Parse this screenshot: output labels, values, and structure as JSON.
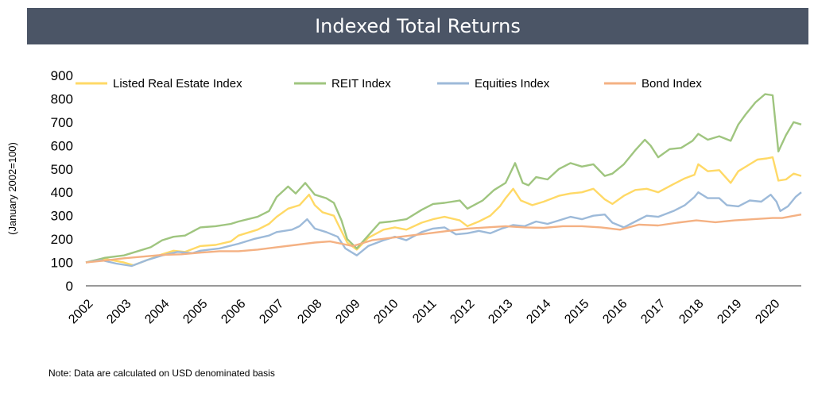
{
  "chart_data": {
    "type": "line",
    "title": "Indexed Total Returns",
    "xlabel": "",
    "ylabel": "(January 2002=100)",
    "xlim": [
      2002,
      2020.75
    ],
    "ylim": [
      0,
      900
    ],
    "yticks": [
      0,
      100,
      200,
      300,
      400,
      500,
      600,
      700,
      800,
      900
    ],
    "xticks": [
      "2002",
      "2003",
      "2004",
      "2005",
      "2006",
      "2007",
      "2008",
      "2009",
      "2010",
      "2011",
      "2012",
      "2013",
      "2014",
      "2015",
      "2016",
      "2017",
      "2018",
      "2019",
      "2020"
    ],
    "grid": false,
    "legend": "top",
    "series": [
      {
        "name": "Listed Real Estate Index",
        "color": "#ffd966",
        "points": [
          [
            2002,
            100
          ],
          [
            2002.5,
            115
          ],
          [
            2003,
            100
          ],
          [
            2003.25,
            88
          ],
          [
            2003.6,
            110
          ],
          [
            2004,
            135
          ],
          [
            2004.3,
            150
          ],
          [
            2004.6,
            145
          ],
          [
            2005,
            170
          ],
          [
            2005.4,
            175
          ],
          [
            2005.8,
            190
          ],
          [
            2006,
            215
          ],
          [
            2006.5,
            240
          ],
          [
            2006.8,
            265
          ],
          [
            2007,
            295
          ],
          [
            2007.3,
            330
          ],
          [
            2007.6,
            345
          ],
          [
            2007.85,
            390
          ],
          [
            2008,
            345
          ],
          [
            2008.2,
            315
          ],
          [
            2008.5,
            300
          ],
          [
            2008.65,
            250
          ],
          [
            2008.85,
            185
          ],
          [
            2009.1,
            155
          ],
          [
            2009.4,
            205
          ],
          [
            2009.8,
            240
          ],
          [
            2010.1,
            250
          ],
          [
            2010.4,
            240
          ],
          [
            2010.8,
            270
          ],
          [
            2011.1,
            285
          ],
          [
            2011.4,
            295
          ],
          [
            2011.8,
            280
          ],
          [
            2012,
            255
          ],
          [
            2012.3,
            275
          ],
          [
            2012.6,
            300
          ],
          [
            2012.85,
            340
          ],
          [
            2013,
            375
          ],
          [
            2013.2,
            415
          ],
          [
            2013.4,
            365
          ],
          [
            2013.7,
            345
          ],
          [
            2014,
            360
          ],
          [
            2014.4,
            385
          ],
          [
            2014.7,
            395
          ],
          [
            2015,
            400
          ],
          [
            2015.3,
            415
          ],
          [
            2015.6,
            370
          ],
          [
            2015.8,
            350
          ],
          [
            2016.1,
            385
          ],
          [
            2016.4,
            410
          ],
          [
            2016.7,
            415
          ],
          [
            2017,
            400
          ],
          [
            2017.4,
            435
          ],
          [
            2017.7,
            460
          ],
          [
            2017.95,
            475
          ],
          [
            2018.05,
            520
          ],
          [
            2018.3,
            490
          ],
          [
            2018.6,
            495
          ],
          [
            2018.9,
            440
          ],
          [
            2019.1,
            490
          ],
          [
            2019.4,
            520
          ],
          [
            2019.6,
            540
          ],
          [
            2019.85,
            545
          ],
          [
            2020,
            550
          ],
          [
            2020.15,
            450
          ],
          [
            2020.35,
            455
          ],
          [
            2020.55,
            480
          ],
          [
            2020.75,
            470
          ]
        ]
      },
      {
        "name": "REIT Index",
        "color": "#9fc57f",
        "points": [
          [
            2002,
            100
          ],
          [
            2002.5,
            120
          ],
          [
            2003,
            130
          ],
          [
            2003.4,
            150
          ],
          [
            2003.7,
            165
          ],
          [
            2004,
            195
          ],
          [
            2004.3,
            210
          ],
          [
            2004.6,
            215
          ],
          [
            2005,
            250
          ],
          [
            2005.4,
            255
          ],
          [
            2005.8,
            265
          ],
          [
            2006,
            275
          ],
          [
            2006.5,
            295
          ],
          [
            2006.8,
            320
          ],
          [
            2007,
            380
          ],
          [
            2007.3,
            425
          ],
          [
            2007.5,
            395
          ],
          [
            2007.75,
            440
          ],
          [
            2008,
            390
          ],
          [
            2008.3,
            375
          ],
          [
            2008.5,
            355
          ],
          [
            2008.7,
            280
          ],
          [
            2008.85,
            200
          ],
          [
            2009.1,
            160
          ],
          [
            2009.4,
            215
          ],
          [
            2009.7,
            270
          ],
          [
            2010,
            275
          ],
          [
            2010.4,
            285
          ],
          [
            2010.8,
            325
          ],
          [
            2011.1,
            350
          ],
          [
            2011.4,
            355
          ],
          [
            2011.8,
            365
          ],
          [
            2012,
            330
          ],
          [
            2012.4,
            365
          ],
          [
            2012.7,
            410
          ],
          [
            2013,
            440
          ],
          [
            2013.25,
            525
          ],
          [
            2013.45,
            440
          ],
          [
            2013.6,
            430
          ],
          [
            2013.8,
            465
          ],
          [
            2014.1,
            455
          ],
          [
            2014.4,
            500
          ],
          [
            2014.7,
            525
          ],
          [
            2015,
            510
          ],
          [
            2015.3,
            520
          ],
          [
            2015.6,
            470
          ],
          [
            2015.8,
            480
          ],
          [
            2016.1,
            520
          ],
          [
            2016.4,
            580
          ],
          [
            2016.65,
            625
          ],
          [
            2016.8,
            600
          ],
          [
            2017,
            550
          ],
          [
            2017.3,
            585
          ],
          [
            2017.6,
            590
          ],
          [
            2017.9,
            620
          ],
          [
            2018.05,
            650
          ],
          [
            2018.3,
            625
          ],
          [
            2018.6,
            640
          ],
          [
            2018.9,
            620
          ],
          [
            2019.1,
            690
          ],
          [
            2019.3,
            735
          ],
          [
            2019.55,
            785
          ],
          [
            2019.8,
            820
          ],
          [
            2020,
            815
          ],
          [
            2020.15,
            575
          ],
          [
            2020.35,
            645
          ],
          [
            2020.55,
            700
          ],
          [
            2020.75,
            690
          ]
        ]
      },
      {
        "name": "Equities Index",
        "color": "#9dbad9",
        "points": [
          [
            2002,
            100
          ],
          [
            2002.4,
            110
          ],
          [
            2002.8,
            95
          ],
          [
            2003.2,
            85
          ],
          [
            2003.6,
            110
          ],
          [
            2004,
            130
          ],
          [
            2004.4,
            145
          ],
          [
            2004.8,
            140
          ],
          [
            2005,
            150
          ],
          [
            2005.5,
            160
          ],
          [
            2006,
            180
          ],
          [
            2006.4,
            200
          ],
          [
            2006.8,
            215
          ],
          [
            2007,
            230
          ],
          [
            2007.4,
            240
          ],
          [
            2007.6,
            255
          ],
          [
            2007.8,
            285
          ],
          [
            2008,
            245
          ],
          [
            2008.3,
            230
          ],
          [
            2008.6,
            210
          ],
          [
            2008.8,
            160
          ],
          [
            2009.1,
            130
          ],
          [
            2009.4,
            170
          ],
          [
            2009.8,
            195
          ],
          [
            2010.1,
            210
          ],
          [
            2010.4,
            195
          ],
          [
            2010.8,
            230
          ],
          [
            2011.1,
            245
          ],
          [
            2011.4,
            250
          ],
          [
            2011.7,
            220
          ],
          [
            2012,
            225
          ],
          [
            2012.3,
            235
          ],
          [
            2012.6,
            225
          ],
          [
            2012.9,
            245
          ],
          [
            2013.2,
            260
          ],
          [
            2013.5,
            255
          ],
          [
            2013.8,
            275
          ],
          [
            2014.1,
            265
          ],
          [
            2014.4,
            280
          ],
          [
            2014.7,
            295
          ],
          [
            2015,
            285
          ],
          [
            2015.3,
            300
          ],
          [
            2015.6,
            305
          ],
          [
            2015.8,
            270
          ],
          [
            2016.1,
            250
          ],
          [
            2016.4,
            275
          ],
          [
            2016.7,
            300
          ],
          [
            2017,
            295
          ],
          [
            2017.4,
            320
          ],
          [
            2017.7,
            345
          ],
          [
            2017.95,
            380
          ],
          [
            2018.05,
            400
          ],
          [
            2018.3,
            375
          ],
          [
            2018.6,
            375
          ],
          [
            2018.8,
            345
          ],
          [
            2019.1,
            340
          ],
          [
            2019.4,
            365
          ],
          [
            2019.7,
            360
          ],
          [
            2019.95,
            390
          ],
          [
            2020.1,
            360
          ],
          [
            2020.2,
            320
          ],
          [
            2020.4,
            340
          ],
          [
            2020.6,
            380
          ],
          [
            2020.75,
            400
          ]
        ]
      },
      {
        "name": "Bond Index",
        "color": "#f4b183",
        "points": [
          [
            2002,
            100
          ],
          [
            2002.5,
            108
          ],
          [
            2003,
            118
          ],
          [
            2003.5,
            125
          ],
          [
            2004,
            132
          ],
          [
            2004.5,
            135
          ],
          [
            2005,
            142
          ],
          [
            2005.5,
            148
          ],
          [
            2006,
            148
          ],
          [
            2006.5,
            155
          ],
          [
            2007,
            165
          ],
          [
            2007.5,
            175
          ],
          [
            2008,
            185
          ],
          [
            2008.4,
            190
          ],
          [
            2008.7,
            180
          ],
          [
            2009,
            170
          ],
          [
            2009.5,
            195
          ],
          [
            2010,
            205
          ],
          [
            2010.5,
            215
          ],
          [
            2011,
            225
          ],
          [
            2011.5,
            235
          ],
          [
            2012,
            245
          ],
          [
            2012.5,
            250
          ],
          [
            2013,
            255
          ],
          [
            2013.5,
            250
          ],
          [
            2014,
            248
          ],
          [
            2014.5,
            255
          ],
          [
            2015,
            255
          ],
          [
            2015.5,
            250
          ],
          [
            2016,
            240
          ],
          [
            2016.5,
            262
          ],
          [
            2017,
            258
          ],
          [
            2017.5,
            270
          ],
          [
            2018,
            280
          ],
          [
            2018.5,
            272
          ],
          [
            2019,
            280
          ],
          [
            2019.5,
            285
          ],
          [
            2020,
            290
          ],
          [
            2020.25,
            290
          ],
          [
            2020.5,
            298
          ],
          [
            2020.75,
            305
          ]
        ]
      }
    ]
  },
  "note": "Note: Data are calculated on USD denominated basis"
}
